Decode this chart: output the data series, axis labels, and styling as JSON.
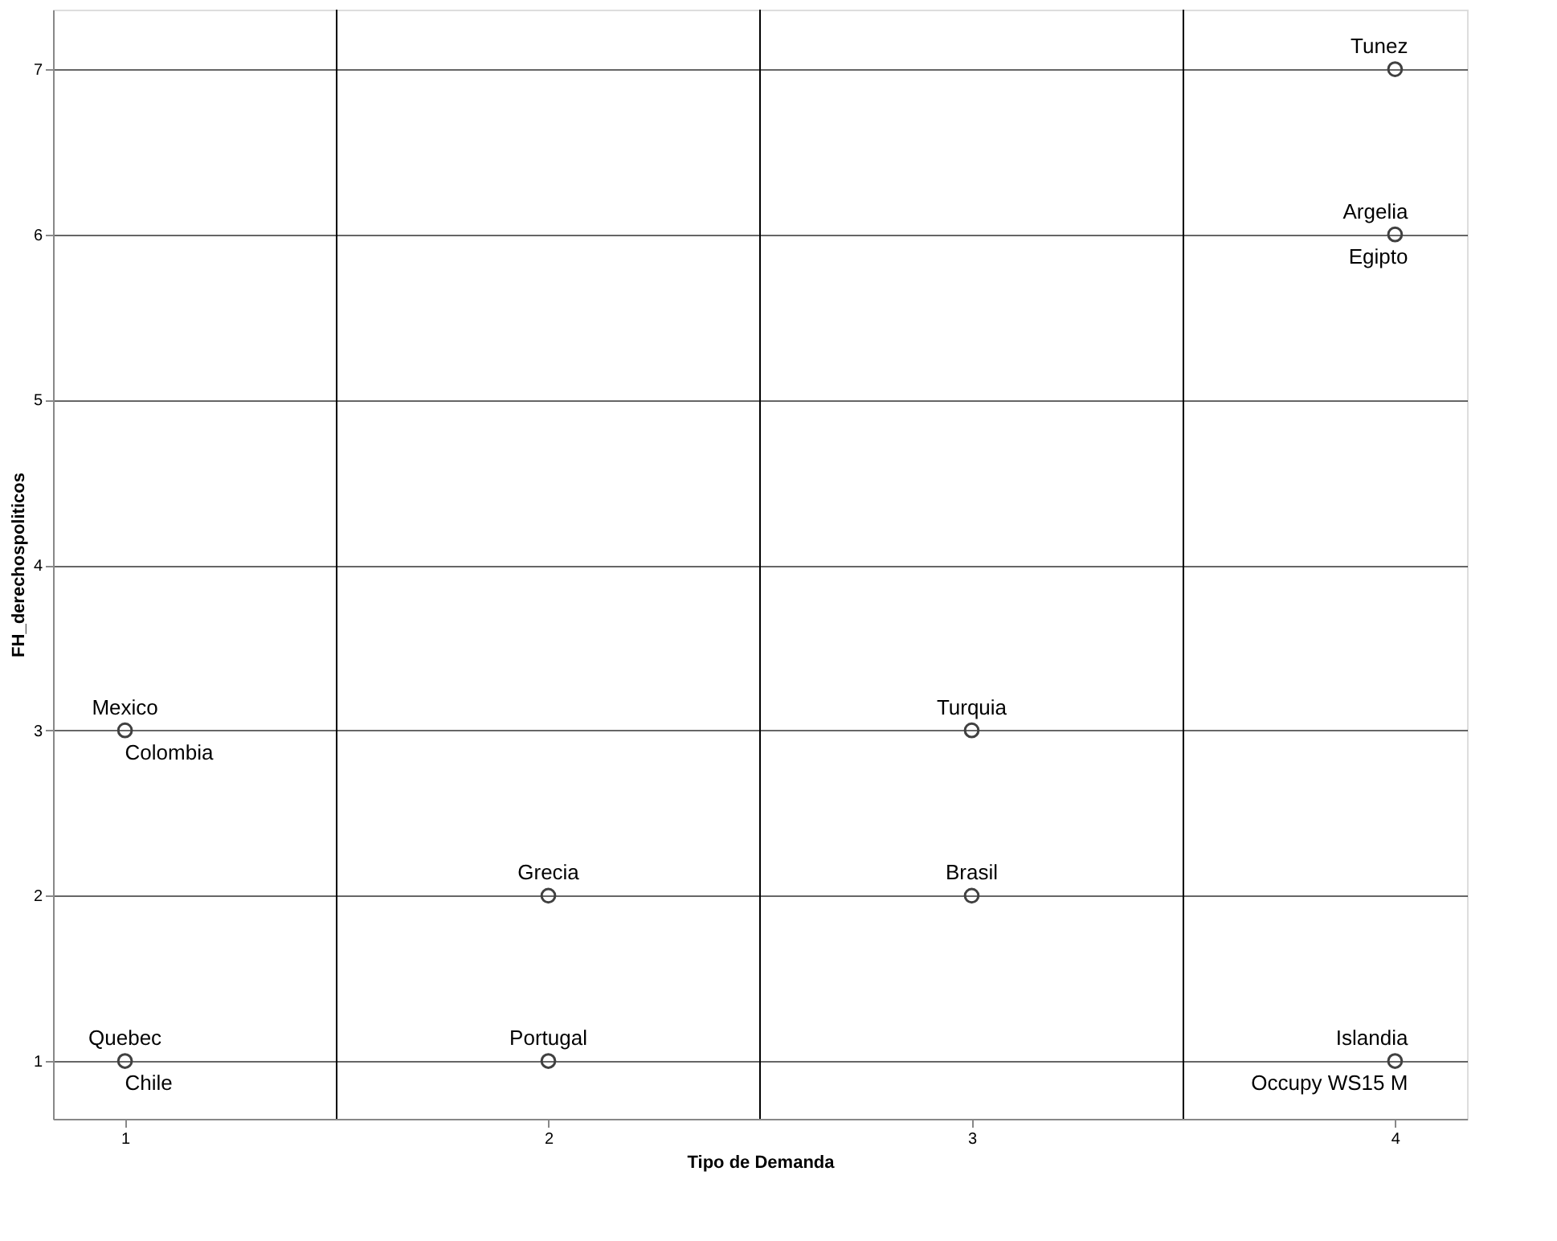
{
  "chart_data": {
    "type": "scatter",
    "xlabel": "Tipo de Demanda",
    "ylabel": "FH_derechospoliticos",
    "x": [
      1,
      1,
      2,
      2,
      3,
      3,
      4,
      4,
      4
    ],
    "values": [
      3,
      1,
      2,
      1,
      3,
      2,
      7,
      6,
      1
    ],
    "color": "#404040",
    "marker": "circle",
    "xlim": [
      0.83,
      4.17
    ],
    "ylim": [
      0.65,
      7.36
    ],
    "xticks": [
      1,
      2,
      3,
      4
    ],
    "yticks": [
      1,
      2,
      3,
      4,
      5,
      6,
      7
    ],
    "grid": "y",
    "ref_lines": [
      {
        "axis": "x",
        "value": 1.5,
        "color": "#000000"
      },
      {
        "axis": "x",
        "value": 2.5,
        "color": "#000000"
      },
      {
        "axis": "x",
        "value": 3.5,
        "color": "#000000"
      }
    ],
    "annotations": [
      {
        "text": "Mexico",
        "x": 1,
        "y": 3
      },
      {
        "text": "Colombia",
        "x": 1,
        "y": 3
      },
      {
        "text": "Quebec",
        "x": 1,
        "y": 1
      },
      {
        "text": "Chile",
        "x": 1,
        "y": 1
      },
      {
        "text": "Grecia",
        "x": 2,
        "y": 2
      },
      {
        "text": "Portugal",
        "x": 2,
        "y": 1
      },
      {
        "text": "Turquia",
        "x": 3,
        "y": 3
      },
      {
        "text": "Brasil",
        "x": 3,
        "y": 2
      },
      {
        "text": "Tunez",
        "x": 4,
        "y": 7
      },
      {
        "text": "Argelia",
        "x": 4,
        "y": 6
      },
      {
        "text": "Egipto",
        "x": 4,
        "y": 6
      },
      {
        "text": "Islandia",
        "x": 4,
        "y": 1
      },
      {
        "text": "Occupy WS15 M",
        "x": 4,
        "y": 1
      }
    ]
  }
}
